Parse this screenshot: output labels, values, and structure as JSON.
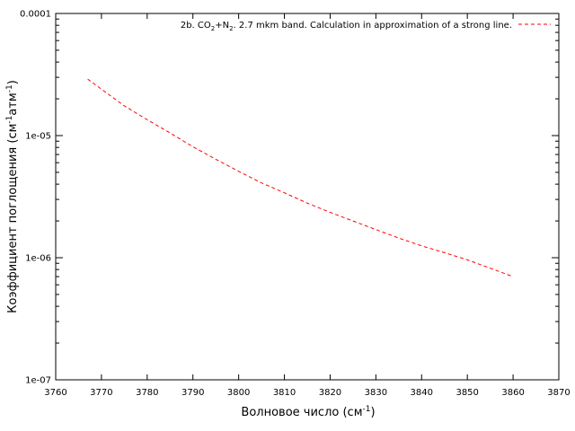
{
  "chart_data": {
    "type": "line",
    "title": "",
    "xlabel": "Волновое число (см",
    "xlabel_sup": "-1",
    "xlabel_end": ")",
    "ylabel_parts": [
      "Коэффициент поглощения (см",
      "-1",
      "атм",
      "-1",
      ")"
    ],
    "x_ticks": [
      3760,
      3770,
      3780,
      3790,
      3800,
      3810,
      3820,
      3830,
      3840,
      3850,
      3860,
      3870
    ],
    "xlim": [
      3760,
      3870
    ],
    "y_scale": "log",
    "ylim": [
      1e-07,
      0.0001
    ],
    "y_ticks": [
      1e-07,
      1e-06,
      1e-05,
      0.0001
    ],
    "y_tick_labels": [
      "1e-07",
      "1e-06",
      "1e-05",
      "0.0001"
    ],
    "grid": false,
    "legend_position": "top-right",
    "series": [
      {
        "name_parts": [
          "2b. CO",
          "2",
          "+N",
          "2",
          ". 2.7 mkm band. Calculation in approximation of a strong line."
        ],
        "color": "#ff0000",
        "line_style": "dashed",
        "points": [
          [
            3767,
            2.9e-05
          ],
          [
            3770,
            2.4e-05
          ],
          [
            3775,
            1.75e-05
          ],
          [
            3780,
            1.35e-05
          ],
          [
            3785,
            1.05e-05
          ],
          [
            3790,
            8.1e-06
          ],
          [
            3795,
            6.4e-06
          ],
          [
            3800,
            5.1e-06
          ],
          [
            3805,
            4.1e-06
          ],
          [
            3810,
            3.4e-06
          ],
          [
            3815,
            2.8e-06
          ],
          [
            3820,
            2.35e-06
          ],
          [
            3825,
            2e-06
          ],
          [
            3830,
            1.7e-06
          ],
          [
            3835,
            1.45e-06
          ],
          [
            3840,
            1.25e-06
          ],
          [
            3845,
            1.1e-06
          ],
          [
            3850,
            9.6e-07
          ],
          [
            3855,
            8.2e-07
          ],
          [
            3860,
            7e-07
          ]
        ]
      }
    ]
  }
}
